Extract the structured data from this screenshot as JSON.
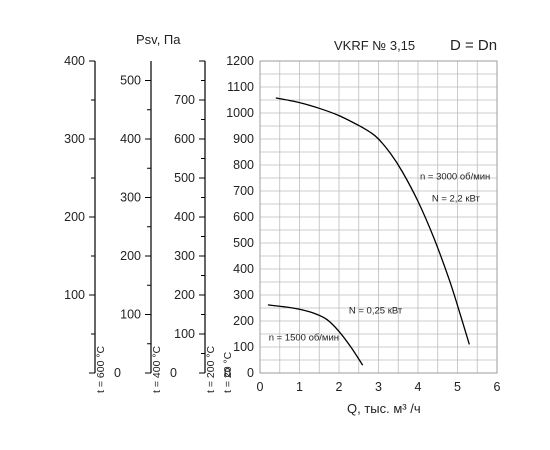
{
  "chart_data": {
    "type": "line",
    "title": "VKRF № 3,15",
    "subtitle": "D = Dn",
    "xlabel": "Q, тыс. м³ /ч",
    "ylabel": "Psv, Па",
    "xlim": [
      0,
      6
    ],
    "ylim": [
      0,
      1200
    ],
    "grid": true,
    "x_ticks": [
      "0",
      "1",
      "2",
      "3",
      "4",
      "5",
      "6"
    ],
    "y_ticks": [
      "0",
      "100",
      "200",
      "300",
      "400",
      "500",
      "600",
      "700",
      "800",
      "900",
      "1000",
      "1100",
      "1200"
    ],
    "series": [
      {
        "name": "n = 3000 об/мин",
        "power_label": "N = 2,2 кВт",
        "color": "#000000",
        "x": [
          0.4,
          1.0,
          1.5,
          2.0,
          2.5,
          2.8,
          3.0,
          3.3,
          3.6,
          4.0,
          4.4,
          4.8,
          5.1,
          5.3
        ],
        "y": [
          1058,
          1040,
          1018,
          990,
          952,
          925,
          900,
          845,
          775,
          660,
          520,
          355,
          210,
          110
        ]
      },
      {
        "name": "n = 1500 об/мин",
        "power_label": "N = 0,25 кВт",
        "color": "#000000",
        "x": [
          0.2,
          0.6,
          1.0,
          1.4,
          1.7,
          2.0,
          2.3,
          2.6
        ],
        "y": [
          262,
          255,
          245,
          228,
          205,
          160,
          100,
          30
        ]
      }
    ],
    "secondary_axes": [
      {
        "label": "t = 600 °C",
        "max": 400,
        "ticks": [
          "0",
          "100",
          "200",
          "300",
          "400"
        ]
      },
      {
        "label": "t = 400 °C",
        "max": 533.33,
        "ticks": [
          "0",
          "100",
          "200",
          "300",
          "400",
          "500"
        ]
      },
      {
        "label": "t = 200 °C",
        "max": 800,
        "ticks": [
          "0",
          "100",
          "200",
          "300",
          "400",
          "500",
          "600",
          "700"
        ]
      },
      {
        "label": "t = 20 °C",
        "max": 1200,
        "ticks": []
      }
    ]
  }
}
